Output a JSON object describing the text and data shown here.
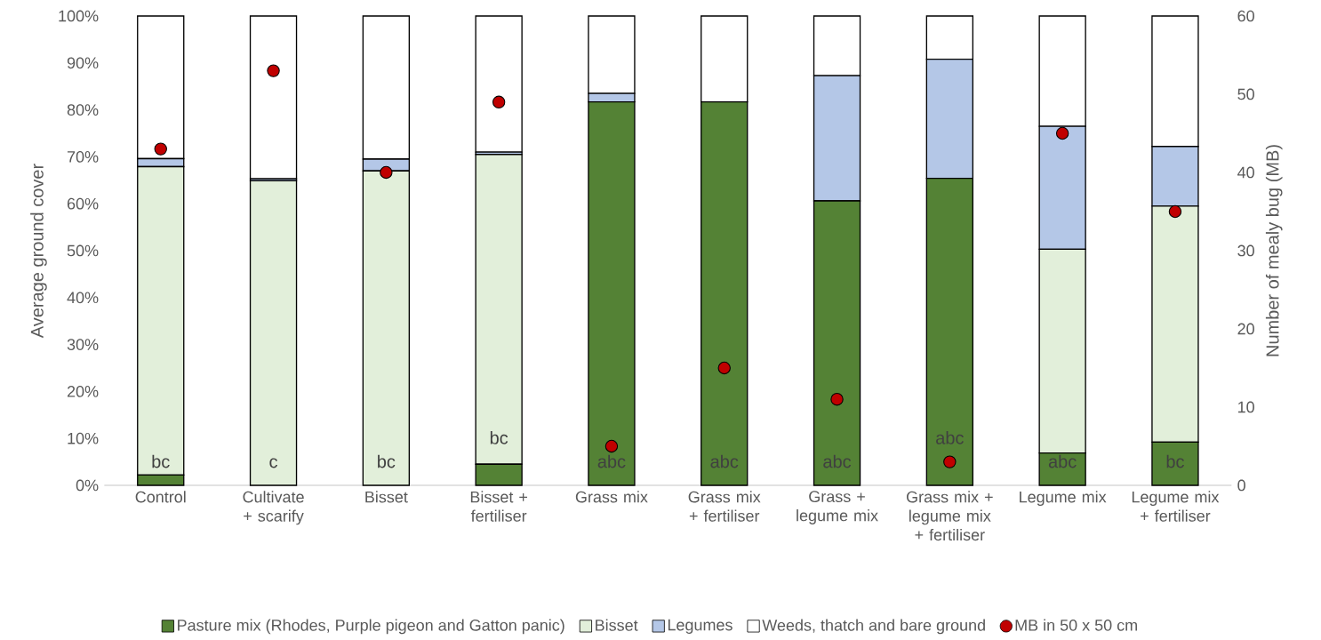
{
  "chart_data": {
    "type": "bar",
    "stacked": true,
    "categories": [
      "Control",
      "Cultivate + scarify",
      "Bisset",
      "Bisset + fertiliser",
      "Grass mix",
      "Grass mix + fertiliser",
      "Grass + legume mix",
      "Grass mix + legume mix + fertiliser",
      "Legume mix",
      "Legume mix + fertiliser"
    ],
    "series": [
      {
        "name": "Pasture mix (Rhodes, Purple pigeon and Gatton panic)",
        "color": "#548235",
        "values": [
          2.2,
          0,
          0,
          4.5,
          81.7,
          81.7,
          60.6,
          65.4,
          6.9,
          9.2
        ]
      },
      {
        "name": "Bisset",
        "color": "#e2efda",
        "values": [
          65.7,
          64.9,
          67.0,
          66.0,
          0,
          0,
          0,
          0,
          43.4,
          50.3
        ]
      },
      {
        "name": "Legumes",
        "color": "#b4c7e7",
        "values": [
          1.7,
          0.4,
          2.5,
          0.5,
          1.8,
          0,
          26.7,
          25.4,
          26.2,
          12.7
        ]
      },
      {
        "name": "Weeds, thatch and bare ground",
        "color": "#ffffff",
        "values": [
          30.4,
          34.7,
          30.5,
          29.0,
          16.5,
          18.3,
          12.7,
          9.2,
          23.5,
          27.8
        ]
      },
      {
        "name": "MB in 50 x 50 cm",
        "type": "scatter",
        "axis": "y2",
        "marker": "circle",
        "color": "#c00000",
        "values": [
          43,
          53,
          40,
          49,
          5,
          15,
          11,
          3,
          45,
          35
        ]
      }
    ],
    "ylabel": "Average ground cover",
    "y2label": "Number of mealy bug (MB)",
    "ylim": [
      0,
      100
    ],
    "yticks": [
      {
        "value": 0,
        "label": "0%"
      },
      {
        "value": 10,
        "label": "10%"
      },
      {
        "value": 20,
        "label": "20%"
      },
      {
        "value": 30,
        "label": "30%"
      },
      {
        "value": 40,
        "label": "40%"
      },
      {
        "value": 50,
        "label": "50%"
      },
      {
        "value": 60,
        "label": "60%"
      },
      {
        "value": 70,
        "label": "70%"
      },
      {
        "value": 80,
        "label": "80%"
      },
      {
        "value": 90,
        "label": "90%"
      },
      {
        "value": 100,
        "label": "100%"
      }
    ],
    "y2lim": [
      0,
      60
    ],
    "y2ticks": [
      0,
      10,
      20,
      30,
      40,
      50,
      60
    ],
    "legend": "bottom",
    "annotations": [
      "bc",
      "c",
      "bc",
      "bc",
      "abc",
      "abc",
      "abc",
      "abc",
      "abc",
      "bc"
    ]
  }
}
